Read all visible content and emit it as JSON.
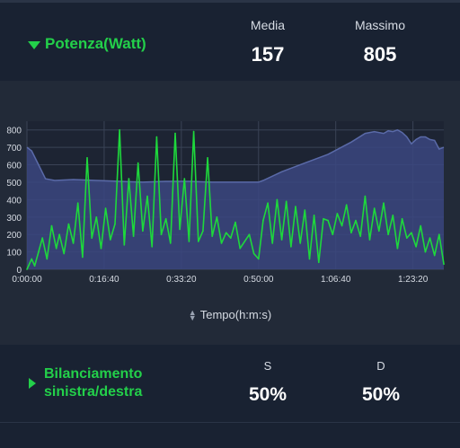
{
  "header": {
    "title": "Potenza(Watt)",
    "avg_label": "Media",
    "avg_value": "157",
    "max_label": "Massimo",
    "max_value": "805"
  },
  "chart": {
    "axis_label": "Tempo(h:m:s)"
  },
  "chart_data": {
    "type": "line",
    "x_tick_labels": [
      "0:00:00",
      "0:16:40",
      "0:33:20",
      "0:50:00",
      "1:06:40",
      "1:23:20"
    ],
    "y_tick_labels": [
      "0",
      "100",
      "200",
      "300",
      "400",
      "500",
      "600",
      "700",
      "800"
    ],
    "ylim": [
      0,
      850
    ],
    "xlim_seconds": [
      0,
      5400
    ],
    "series": [
      {
        "color": "#5a6aa8",
        "x_seconds": [
          0,
          60,
          150,
          240,
          360,
          600,
          900,
          1200,
          1500,
          1800,
          2100,
          2400,
          2700,
          3000,
          3060,
          3300,
          3600,
          3900,
          4200,
          4380,
          4500,
          4620,
          4680,
          4740,
          4800,
          4860,
          4920,
          4980,
          5040,
          5100,
          5160,
          5220,
          5280,
          5340,
          5400
        ],
        "values": [
          700,
          680,
          600,
          520,
          510,
          515,
          510,
          505,
          500,
          505,
          505,
          500,
          500,
          500,
          510,
          560,
          610,
          660,
          730,
          780,
          790,
          780,
          795,
          790,
          800,
          785,
          760,
          720,
          745,
          760,
          760,
          745,
          740,
          690,
          700
        ]
      },
      {
        "color": "#1ed83c",
        "x_seconds": [
          0,
          60,
          100,
          150,
          200,
          260,
          320,
          380,
          420,
          480,
          540,
          600,
          660,
          720,
          780,
          840,
          900,
          960,
          1020,
          1080,
          1140,
          1200,
          1260,
          1320,
          1380,
          1440,
          1500,
          1560,
          1620,
          1680,
          1740,
          1800,
          1860,
          1920,
          1980,
          2040,
          2100,
          2160,
          2220,
          2280,
          2340,
          2400,
          2460,
          2520,
          2580,
          2640,
          2700,
          2760,
          2820,
          2880,
          2940,
          3000,
          3060,
          3120,
          3180,
          3240,
          3300,
          3360,
          3420,
          3480,
          3540,
          3600,
          3660,
          3720,
          3780,
          3840,
          3900,
          3960,
          4020,
          4080,
          4140,
          4200,
          4260,
          4320,
          4380,
          4440,
          4500,
          4560,
          4620,
          4680,
          4740,
          4800,
          4860,
          4920,
          4980,
          5040,
          5100,
          5160,
          5220,
          5280,
          5340,
          5400
        ],
        "values": [
          0,
          60,
          20,
          100,
          180,
          60,
          250,
          120,
          200,
          90,
          260,
          150,
          380,
          70,
          640,
          180,
          300,
          120,
          350,
          170,
          260,
          800,
          140,
          520,
          190,
          610,
          220,
          420,
          130,
          760,
          200,
          290,
          150,
          780,
          230,
          520,
          160,
          790,
          160,
          220,
          640,
          190,
          300,
          150,
          210,
          180,
          270,
          120,
          160,
          200,
          90,
          60,
          280,
          380,
          150,
          400,
          170,
          390,
          130,
          360,
          150,
          340,
          60,
          310,
          40,
          290,
          280,
          200,
          320,
          250,
          370,
          210,
          280,
          190,
          420,
          170,
          350,
          220,
          380,
          200,
          310,
          120,
          290,
          180,
          210,
          130,
          250,
          100,
          180,
          80,
          200,
          30
        ]
      }
    ]
  },
  "balance": {
    "title_line1": "Bilanciamento",
    "title_line2": "sinistra/destra",
    "left_label": "S",
    "left_value": "50%",
    "right_label": "D",
    "right_value": "50%"
  }
}
